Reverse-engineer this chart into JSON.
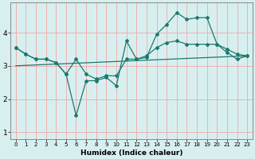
{
  "xlabel": "Humidex (Indice chaleur)",
  "bg_color": "#d8eff0",
  "line_color": "#1a7a6e",
  "grid_color": "#f0b0b0",
  "xlim": [
    -0.5,
    23.5
  ],
  "ylim": [
    0.8,
    4.9
  ],
  "yticks": [
    1,
    2,
    3,
    4
  ],
  "xticks": [
    0,
    1,
    2,
    3,
    4,
    5,
    6,
    7,
    8,
    9,
    10,
    11,
    12,
    13,
    14,
    15,
    16,
    17,
    18,
    19,
    20,
    21,
    22,
    23
  ],
  "line1_x": [
    0,
    1,
    2,
    3,
    4,
    5,
    6,
    7,
    8,
    9,
    10,
    11,
    12,
    13,
    14,
    15,
    16,
    17,
    18,
    19,
    20,
    21,
    22,
    23
  ],
  "line1_y": [
    3.55,
    3.35,
    3.2,
    3.2,
    3.1,
    2.75,
    1.5,
    2.55,
    2.55,
    2.65,
    2.4,
    3.75,
    3.2,
    3.25,
    3.95,
    4.25,
    4.6,
    4.4,
    4.45,
    4.45,
    3.65,
    3.4,
    3.2,
    3.3
  ],
  "line2_x": [
    0,
    1,
    2,
    3,
    4,
    5,
    6,
    7,
    8,
    9,
    10,
    11,
    12,
    13,
    14,
    15,
    16,
    17,
    18,
    19,
    20,
    21,
    22,
    23
  ],
  "line2_y": [
    3.55,
    3.35,
    3.2,
    3.2,
    3.1,
    2.75,
    3.2,
    2.75,
    2.6,
    2.7,
    2.7,
    3.2,
    3.2,
    3.3,
    3.55,
    3.7,
    3.75,
    3.65,
    3.65,
    3.65,
    3.65,
    3.5,
    3.35,
    3.3
  ],
  "line3_x": [
    0,
    23
  ],
  "line3_y": [
    3.0,
    3.3
  ]
}
